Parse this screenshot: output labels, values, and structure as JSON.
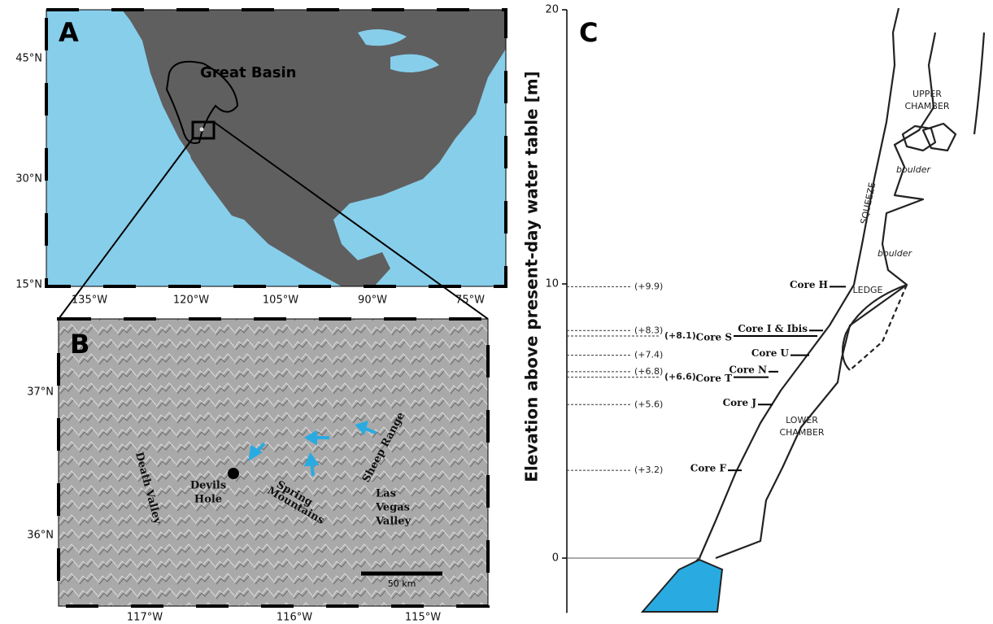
{
  "panel_a": {
    "letter": "A",
    "region": "Great Basin",
    "lat_labels": [
      "45°N",
      "30°N",
      "15°N"
    ],
    "lon_labels": [
      "135°W",
      "120°W",
      "105°W",
      "90°W",
      "75°W"
    ]
  },
  "panel_b": {
    "letter": "B",
    "lat_labels": [
      "37°N",
      "36°N"
    ],
    "lon_labels": [
      "117°W",
      "116°W",
      "115°W"
    ],
    "places": [
      {
        "lines": [
          "Death Valley"
        ]
      },
      {
        "lines": [
          "Devils",
          "Hole"
        ]
      },
      {
        "lines": [
          "Spring",
          "Mountains"
        ]
      },
      {
        "lines": [
          "Sheep Range"
        ]
      },
      {
        "lines": [
          "Las",
          "Vegas",
          "Valley"
        ]
      }
    ],
    "scale": "50 km"
  },
  "panel_c": {
    "letter": "C",
    "y_label": "Elevation above present-day water table [m]",
    "ylim": [
      -2,
      20
    ],
    "yticks": [
      0,
      10,
      20
    ],
    "zones": [
      {
        "lines": [
          "UPPER",
          "CHAMBER"
        ]
      },
      {
        "lines": [
          "boulder"
        ]
      },
      {
        "lines": [
          "SQUEEZE"
        ]
      },
      {
        "lines": [
          "boulder"
        ]
      },
      {
        "lines": [
          "LEDGE"
        ]
      },
      {
        "lines": [
          "LOWER",
          "CHAMBER"
        ]
      }
    ],
    "cores": [
      {
        "name": "Core H",
        "elevation": 9.9,
        "label": "(+9.9)"
      },
      {
        "name": "Core I & Ibis",
        "elevation": 8.3,
        "label": "(+8.3)"
      },
      {
        "name": "Core S",
        "elevation": 8.1,
        "label": "(+8.1)"
      },
      {
        "name": "Core U",
        "elevation": 7.4,
        "label": "(+7.4)"
      },
      {
        "name": "Core N",
        "elevation": 6.8,
        "label": "(+6.8)"
      },
      {
        "name": "Core T",
        "elevation": 6.6,
        "label": "(+6.6)"
      },
      {
        "name": "Core J",
        "elevation": 5.6,
        "label": "(+5.6)"
      },
      {
        "name": "Core F",
        "elevation": 3.2,
        "label": "(+3.2)"
      }
    ]
  }
}
